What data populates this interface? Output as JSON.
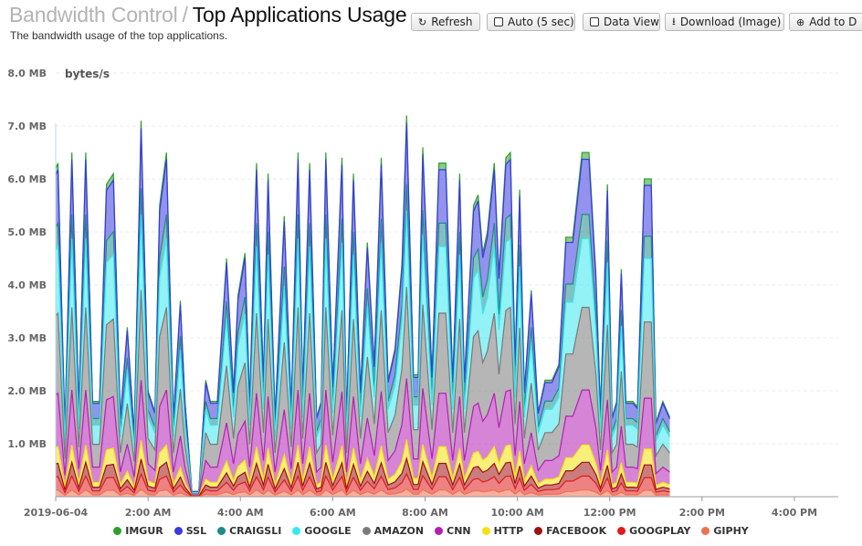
{
  "header": {
    "breadcrumb": "Bandwidth Control",
    "separator": "/",
    "title": "Top Applications Usage",
    "subtitle": "The bandwidth usage of the top applications."
  },
  "toolbar": {
    "refresh": "Refresh",
    "auto": "Auto (5 sec)",
    "data_view": "Data View",
    "download": "Download (Image)",
    "add_to": "Add to D"
  },
  "chart_data": {
    "type": "area",
    "stacked": true,
    "unit_label": "bytes/s",
    "ylim": [
      0,
      8
    ],
    "y_ticks": [
      "1.0 MB",
      "2.0 MB",
      "3.0 MB",
      "4.0 MB",
      "5.0 MB",
      "6.0 MB",
      "7.0 MB",
      "8.0 MB"
    ],
    "x_ticks": [
      "2019-06-04",
      "2:00 AM",
      "4:00 AM",
      "6:00 AM",
      "8:00 AM",
      "10:00 AM",
      "12:00 PM",
      "2:00 PM",
      "4:00 PM"
    ],
    "x_tick_hours": [
      0,
      2,
      4,
      6,
      8,
      10,
      12,
      14,
      16
    ],
    "xlim_hours": [
      0,
      16.95
    ],
    "grid": true,
    "legend_position": "bottom",
    "totals": [
      [
        0,
        6.2
      ],
      [
        0.05,
        6.3
      ],
      [
        0.2,
        1.3
      ],
      [
        0.35,
        6.5
      ],
      [
        0.5,
        1.7
      ],
      [
        0.65,
        6.5
      ],
      [
        0.8,
        1.8
      ],
      [
        0.95,
        1.8
      ],
      [
        1.1,
        5.9
      ],
      [
        1.25,
        6.1
      ],
      [
        1.4,
        1.5
      ],
      [
        1.55,
        3.2
      ],
      [
        1.7,
        1.2
      ],
      [
        1.85,
        7.1
      ],
      [
        2.0,
        2.0
      ],
      [
        2.15,
        1.6
      ],
      [
        2.25,
        5.5
      ],
      [
        2.4,
        6.5
      ],
      [
        2.55,
        1.5
      ],
      [
        2.7,
        3.7
      ],
      [
        2.8,
        1.8
      ],
      [
        2.95,
        0.1
      ],
      [
        3.1,
        0.1
      ],
      [
        3.25,
        2.2
      ],
      [
        3.35,
        1.8
      ],
      [
        3.5,
        1.8
      ],
      [
        3.7,
        4.5
      ],
      [
        3.85,
        2.0
      ],
      [
        3.95,
        3.8
      ],
      [
        4.1,
        4.6
      ],
      [
        4.2,
        1.8
      ],
      [
        4.35,
        6.3
      ],
      [
        4.5,
        2.2
      ],
      [
        4.6,
        6.1
      ],
      [
        4.75,
        1.5
      ],
      [
        4.95,
        5.3
      ],
      [
        5.1,
        1.7
      ],
      [
        5.25,
        6.5
      ],
      [
        5.35,
        2.0
      ],
      [
        5.5,
        6.3
      ],
      [
        5.65,
        1.5
      ],
      [
        5.75,
        1.8
      ],
      [
        5.85,
        6.5
      ],
      [
        6.0,
        2.1
      ],
      [
        6.2,
        6.4
      ],
      [
        6.3,
        1.5
      ],
      [
        6.45,
        6.1
      ],
      [
        6.6,
        2.0
      ],
      [
        6.75,
        4.8
      ],
      [
        6.9,
        2.5
      ],
      [
        7.05,
        6.4
      ],
      [
        7.2,
        2.2
      ],
      [
        7.35,
        2.8
      ],
      [
        7.5,
        4.4
      ],
      [
        7.6,
        7.2
      ],
      [
        7.75,
        2.3
      ],
      [
        7.85,
        2.3
      ],
      [
        7.95,
        6.6
      ],
      [
        8.15,
        2.3
      ],
      [
        8.3,
        6.3
      ],
      [
        8.45,
        6.3
      ],
      [
        8.6,
        2.2
      ],
      [
        8.75,
        6.1
      ],
      [
        8.85,
        2.2
      ],
      [
        9.05,
        5.5
      ],
      [
        9.15,
        5.7
      ],
      [
        9.25,
        4.6
      ],
      [
        9.35,
        5.0
      ],
      [
        9.5,
        6.3
      ],
      [
        9.6,
        4.2
      ],
      [
        9.75,
        6.4
      ],
      [
        9.85,
        6.5
      ],
      [
        9.95,
        2.5
      ],
      [
        10.05,
        5.8
      ],
      [
        10.15,
        2.0
      ],
      [
        10.3,
        3.9
      ],
      [
        10.45,
        1.6
      ],
      [
        10.6,
        2.2
      ],
      [
        10.75,
        2.2
      ],
      [
        10.9,
        2.5
      ],
      [
        11.05,
        4.9
      ],
      [
        11.2,
        4.9
      ],
      [
        11.4,
        6.5
      ],
      [
        11.55,
        6.5
      ],
      [
        11.7,
        4.2
      ],
      [
        11.8,
        1.6
      ],
      [
        11.95,
        5.9
      ],
      [
        12.05,
        1.5
      ],
      [
        12.15,
        1.8
      ],
      [
        12.25,
        4.3
      ],
      [
        12.35,
        1.8
      ],
      [
        12.5,
        1.8
      ],
      [
        12.6,
        1.7
      ],
      [
        12.75,
        6.0
      ],
      [
        12.9,
        6.0
      ],
      [
        13.0,
        1.4
      ],
      [
        13.15,
        1.8
      ],
      [
        13.3,
        1.5
      ]
    ],
    "series": [
      {
        "name": "IMGUR",
        "color": "#2ca02c"
      },
      {
        "name": "SSL",
        "color": "#3a3adf"
      },
      {
        "name": "CRAIGSLI",
        "color": "#1f8a8a"
      },
      {
        "name": "GOOGLE",
        "color": "#38e8ee"
      },
      {
        "name": "AMAZON",
        "color": "#7a7a7a"
      },
      {
        "name": "CNN",
        "color": "#b41fb4"
      },
      {
        "name": "HTTP",
        "color": "#f3e20e"
      },
      {
        "name": "FACEBOOK",
        "color": "#a01010"
      },
      {
        "name": "GOOGPLAY",
        "color": "#e01c1c"
      },
      {
        "name": "GIPHY",
        "color": "#f07050"
      }
    ],
    "shares": [
      0.02,
      0.16,
      0.07,
      0.2,
      0.24,
      0.16,
      0.05,
      0.04,
      0.04,
      0.02
    ]
  }
}
